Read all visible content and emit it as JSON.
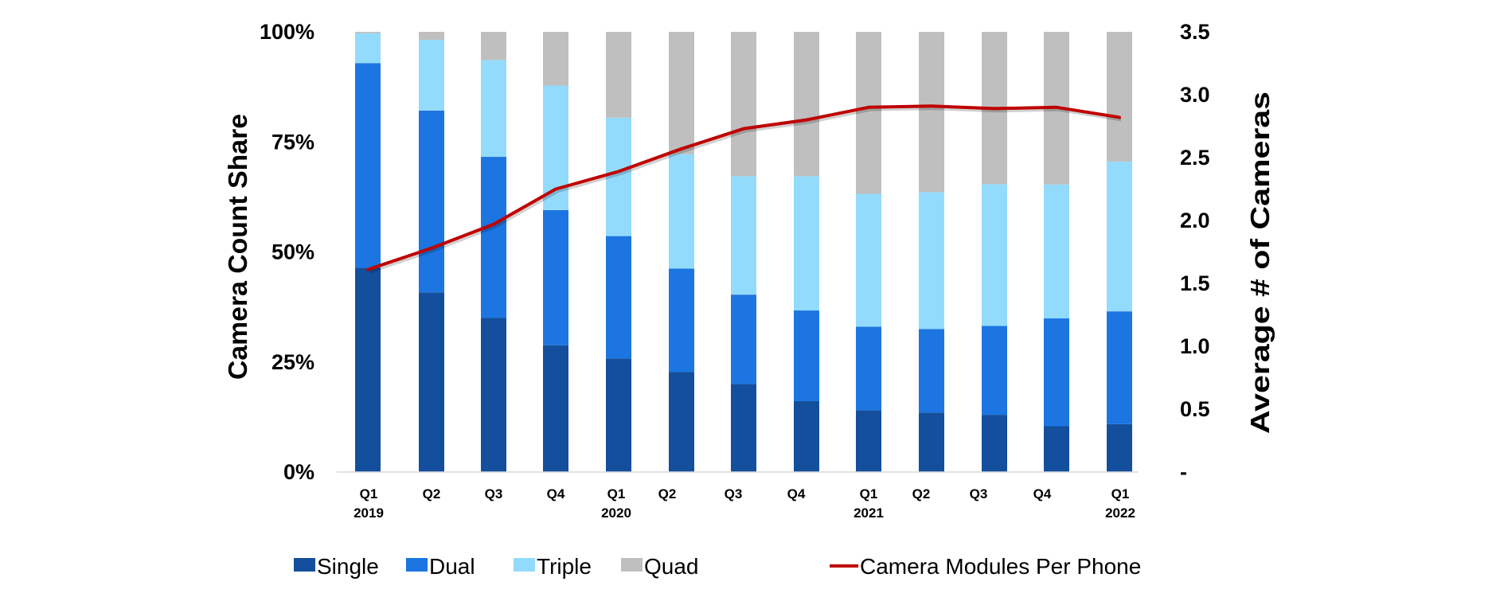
{
  "chart_data": {
    "type": "bar",
    "subtype": "stacked-100-with-line-secondary-axis",
    "title": "",
    "categories": [
      "Q1 2019",
      "Q2 2019",
      "Q3 2019",
      "Q4 2019",
      "Q1 2020",
      "Q2 2020",
      "Q3 2020",
      "Q4 2020",
      "Q1 2021",
      "Q2 2021",
      "Q3 2021",
      "Q4 2021",
      "Q1 2022"
    ],
    "category_labels": [
      {
        "q": "Q1",
        "year": "2019"
      },
      {
        "q": "Q2",
        "year": ""
      },
      {
        "q": "Q3",
        "year": ""
      },
      {
        "q": "Q4",
        "year": ""
      },
      {
        "q": "Q1",
        "year": "2020"
      },
      {
        "q": "Q2",
        "year": ""
      },
      {
        "q": "Q3",
        "year": ""
      },
      {
        "q": "Q4",
        "year": ""
      },
      {
        "q": "Q1",
        "year": "2021"
      },
      {
        "q": "Q2",
        "year": ""
      },
      {
        "q": "Q3",
        "year": ""
      },
      {
        "q": "Q4",
        "year": ""
      },
      {
        "q": "Q1",
        "year": "2022"
      }
    ],
    "series": [
      {
        "name": "Single",
        "color": "#134F9C",
        "axis": "left",
        "type": "bar",
        "values": [
          46.4,
          40.8,
          35.0,
          28.8,
          25.8,
          22.7,
          20.0,
          16.1,
          14.0,
          13.5,
          13.0,
          10.4,
          10.9
        ]
      },
      {
        "name": "Dual",
        "color": "#1C75E0",
        "axis": "left",
        "type": "bar",
        "values": [
          46.5,
          41.3,
          36.6,
          30.7,
          27.8,
          23.5,
          20.3,
          20.6,
          19.0,
          19.0,
          20.2,
          24.5,
          25.6
        ]
      },
      {
        "name": "Triple",
        "color": "#93DBFC",
        "axis": "left",
        "type": "bar",
        "values": [
          6.8,
          16.1,
          22.0,
          28.3,
          26.9,
          26.0,
          26.9,
          30.5,
          30.2,
          31.1,
          32.2,
          30.4,
          34.0
        ]
      },
      {
        "name": "Quad",
        "color": "#BFBFBF",
        "axis": "left",
        "type": "bar",
        "values": [
          0.3,
          1.8,
          6.4,
          12.2,
          19.5,
          27.8,
          32.8,
          32.8,
          36.8,
          36.4,
          34.6,
          34.7,
          29.5
        ]
      },
      {
        "name": "Camera Modules Per Phone",
        "color": "#C00000",
        "axis": "right",
        "type": "line",
        "values": [
          1.61,
          1.78,
          1.97,
          2.25,
          2.39,
          2.57,
          2.73,
          2.8,
          2.9,
          2.91,
          2.89,
          2.9,
          2.82
        ]
      }
    ],
    "xlabel": "",
    "ylabel": "Camera Count Share",
    "y2label": "Average # of Cameras",
    "ylim": [
      0,
      100
    ],
    "y2lim": [
      0,
      3.5
    ],
    "yticks": [
      "0%",
      "25%",
      "50%",
      "75%",
      "100%"
    ],
    "y2ticks": [
      "-",
      "0.5",
      "1.0",
      "1.5",
      "2.0",
      "2.5",
      "3.0",
      "3.5"
    ],
    "grid": false,
    "legend_position": "bottom"
  },
  "axes": {
    "left_title": "Camera Count Share",
    "right_title": "Average # of Cameras"
  },
  "legend": {
    "items": [
      {
        "label": "Single",
        "kind": "swatch",
        "color": "#134F9C"
      },
      {
        "label": "Dual",
        "kind": "swatch",
        "color": "#1C75E0"
      },
      {
        "label": "Triple",
        "kind": "swatch",
        "color": "#93DBFC"
      },
      {
        "label": "Quad",
        "kind": "swatch",
        "color": "#BFBFBF"
      },
      {
        "label": "Camera Modules Per Phone",
        "kind": "line",
        "color": "#C00000"
      }
    ]
  }
}
